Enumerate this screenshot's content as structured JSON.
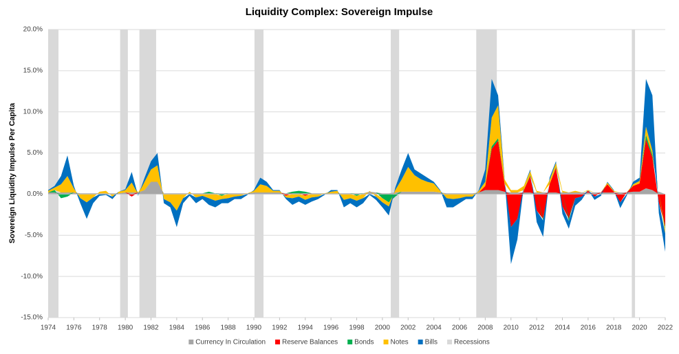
{
  "chart_data": {
    "type": "stacked_area",
    "title": "Liquidity Complex: Sovereign Impulse",
    "y_label": "Sovereign Liquidity Impulse Per Capita",
    "x": [
      1974,
      1974.5,
      1975,
      1975.5,
      1976,
      1976.5,
      1977,
      1977.5,
      1978,
      1978.5,
      1979,
      1979.5,
      1980,
      1980.5,
      1981,
      1981.5,
      1982,
      1982.5,
      1983,
      1983.5,
      1984,
      1984.5,
      1985,
      1985.5,
      1986,
      1986.5,
      1987,
      1987.5,
      1988,
      1988.5,
      1989,
      1989.5,
      1990,
      1990.5,
      1991,
      1991.5,
      1992,
      1992.5,
      1993,
      1993.5,
      1994,
      1994.5,
      1995,
      1995.5,
      1996,
      1996.5,
      1997,
      1997.5,
      1998,
      1998.5,
      1999,
      1999.5,
      2000,
      2000.5,
      2001,
      2001.5,
      2002,
      2002.5,
      2003,
      2003.5,
      2004,
      2004.5,
      2005,
      2005.5,
      2006,
      2006.5,
      2007,
      2007.5,
      2008,
      2008.5,
      2009,
      2009.5,
      2010,
      2010.5,
      2011,
      2011.5,
      2012,
      2012.5,
      2013,
      2013.5,
      2014,
      2014.5,
      2015,
      2015.5,
      2016,
      2016.5,
      2017,
      2017.5,
      2018,
      2018.5,
      2019,
      2019.5,
      2020,
      2020.5,
      2021,
      2021.5,
      2022
    ],
    "series": [
      {
        "name": "Currency In Circulation",
        "color": "#a6a6a6",
        "values": [
          0.2,
          0.2,
          0.2,
          0.2,
          0.2,
          0.1,
          0.1,
          0.1,
          0.1,
          0.1,
          0.1,
          0.1,
          0.2,
          0.2,
          0.2,
          0.5,
          1.5,
          1.5,
          0.1,
          0.1,
          0.1,
          0.1,
          0.1,
          0.1,
          0.1,
          0.1,
          0.1,
          0.1,
          0.1,
          0.1,
          0.1,
          0.1,
          0.2,
          0.2,
          0.2,
          0.2,
          0.2,
          0.1,
          0.1,
          0.1,
          0.1,
          0.1,
          0.1,
          0.1,
          0.1,
          0.1,
          0.1,
          0.1,
          0.1,
          0.1,
          0.3,
          0.2,
          0.1,
          0.1,
          0.2,
          0.3,
          0.3,
          0.3,
          0.3,
          0.3,
          0.3,
          0.2,
          0.1,
          0.1,
          0.1,
          0.1,
          0.1,
          0.2,
          0.5,
          0.5,
          0.5,
          0.3,
          0.2,
          0.2,
          0.2,
          0.2,
          0.2,
          0.2,
          0.2,
          0.2,
          0.2,
          0.2,
          0.2,
          0.2,
          0.2,
          0.2,
          0.2,
          0.2,
          0.2,
          0.2,
          0.2,
          0.3,
          0.3,
          0.7,
          0.5,
          0.3,
          0
        ]
      },
      {
        "name": "Reserve Balances",
        "color": "#ff0000",
        "values": [
          0,
          0,
          0,
          0,
          0,
          0,
          0,
          0,
          0,
          0,
          0,
          0,
          0,
          -0.3,
          0,
          0,
          0,
          0,
          0,
          0,
          0,
          0,
          0,
          0,
          0,
          0,
          0,
          0,
          0,
          0,
          0,
          0,
          0,
          0,
          0,
          0,
          0,
          -0.2,
          0,
          0,
          -0.2,
          0,
          0,
          0,
          0,
          0,
          0,
          0,
          0,
          0,
          0,
          0,
          0,
          0,
          0,
          0,
          0,
          0,
          0,
          0,
          0,
          0,
          0,
          0,
          0,
          0,
          0,
          0,
          0.5,
          5,
          6,
          1,
          -4,
          -3,
          0.3,
          2,
          -2,
          -3,
          1,
          3,
          -1.5,
          -3,
          -0.5,
          -0.3,
          0.2,
          -0.3,
          0,
          1,
          0.1,
          -1,
          0,
          0.7,
          1,
          6,
          4,
          -1,
          -4
        ]
      },
      {
        "name": "Bonds",
        "color": "#00b050",
        "values": [
          0,
          0.3,
          -0.5,
          -0.3,
          0,
          0,
          0,
          0,
          0,
          0,
          0,
          0,
          0,
          0,
          0,
          0,
          0,
          0,
          0,
          0,
          0,
          0,
          0,
          0,
          0,
          0.2,
          0,
          -0.2,
          0,
          0,
          0,
          0,
          0,
          0,
          0,
          0,
          0,
          0,
          0.2,
          0.3,
          0.2,
          0,
          0,
          0,
          0,
          0,
          0,
          0,
          -0.2,
          0,
          0,
          0,
          -0.5,
          -1,
          -0.3,
          0,
          0,
          0,
          0,
          0,
          0,
          0,
          0,
          0,
          0,
          0,
          0,
          0,
          0,
          0.3,
          0.3,
          0,
          0,
          0,
          0,
          0.1,
          0,
          -0.2,
          0,
          0.1,
          0,
          -0.3,
          0,
          0,
          0,
          0,
          0,
          0,
          0,
          0,
          0,
          0,
          0,
          0.5,
          0.3,
          0,
          -0.3
        ]
      },
      {
        "name": "Notes",
        "color": "#ffc000",
        "values": [
          0.2,
          0.3,
          1,
          2,
          0.5,
          -0.5,
          -1,
          -0.4,
          0.2,
          0.3,
          -0.3,
          0.2,
          0.3,
          1.2,
          0,
          1,
          1.5,
          2,
          -0.6,
          -1,
          -2,
          -0.5,
          0.2,
          -0.4,
          -0.2,
          -0.5,
          -0.8,
          -0.4,
          -0.5,
          -0.3,
          -0.2,
          0,
          0.2,
          1,
          0.8,
          0.2,
          0.2,
          -0.2,
          -0.5,
          -0.3,
          -0.5,
          -0.4,
          -0.3,
          0,
          0.2,
          0.3,
          -0.7,
          -0.5,
          -0.6,
          -0.5,
          0.1,
          -0.3,
          -0.5,
          -0.5,
          0.3,
          1.5,
          3,
          2,
          1.5,
          1.2,
          1,
          0.2,
          -0.5,
          -0.6,
          -0.5,
          -0.3,
          -0.3,
          0.2,
          0.5,
          3.5,
          4,
          0.5,
          0.3,
          0.3,
          0.5,
          0.5,
          0.2,
          0,
          0.5,
          0.5,
          0.2,
          0,
          0.2,
          0,
          0.1,
          0,
          0,
          0.2,
          0.1,
          0,
          0,
          0.2,
          0.3,
          1,
          0.5,
          0,
          -0.5
        ]
      },
      {
        "name": "Bills",
        "color": "#0070c0",
        "values": [
          0.1,
          0.2,
          1,
          2.5,
          0.3,
          -0.6,
          -2,
          -0.7,
          -0.2,
          -0.1,
          -0.3,
          0,
          0.1,
          1.3,
          -0.2,
          0.5,
          1,
          1.5,
          -0.5,
          -0.6,
          -2,
          -0.6,
          -0.2,
          -0.7,
          -0.4,
          -0.8,
          -0.8,
          -0.5,
          -0.6,
          -0.3,
          -0.4,
          -0.1,
          0.1,
          0.8,
          0.5,
          0.1,
          0.1,
          -0.2,
          -0.8,
          -0.6,
          -0.6,
          -0.5,
          -0.3,
          -0.1,
          0.2,
          0.1,
          -0.9,
          -0.6,
          -0.8,
          -0.6,
          -0.1,
          -0.4,
          -0.6,
          -1.1,
          0.3,
          1.2,
          1.7,
          0.7,
          0.7,
          0.5,
          0.2,
          0.1,
          -1.1,
          -1,
          -0.6,
          -0.3,
          -0.3,
          0.1,
          1.5,
          4.7,
          1.2,
          0.2,
          -4.5,
          -2.5,
          0,
          0.2,
          -1.4,
          -2,
          0.3,
          0.2,
          -0.9,
          -0.9,
          -0.9,
          -0.4,
          0,
          -0.4,
          -0.2,
          0.1,
          0.1,
          -0.7,
          -0.2,
          0.3,
          0.4,
          5.8,
          6.7,
          -1.3,
          -2.2
        ]
      }
    ],
    "recessions": {
      "name": "Recessions",
      "color": "#d9d9d9",
      "spans": [
        [
          1974,
          1974.8
        ],
        [
          1979.6,
          1980.2
        ],
        [
          1981.1,
          1982.4
        ],
        [
          1990.05,
          1990.75
        ],
        [
          2000.65,
          2001.3
        ],
        [
          2007.3,
          2008.9
        ],
        [
          2019.4,
          2019.65
        ]
      ]
    },
    "xlim": [
      1974,
      2022
    ],
    "xticks": [
      1974,
      1976,
      1978,
      1980,
      1982,
      1984,
      1986,
      1988,
      1990,
      1992,
      1994,
      1996,
      1998,
      2000,
      2002,
      2004,
      2006,
      2008,
      2010,
      2012,
      2014,
      2016,
      2018,
      2020,
      2022
    ],
    "ylim": [
      -15,
      20
    ],
    "yticks": [
      {
        "value": 20,
        "label": "20.0%"
      },
      {
        "value": 15,
        "label": "15.0%"
      },
      {
        "value": 10,
        "label": "10.0%"
      },
      {
        "value": 5,
        "label": "5.0%"
      },
      {
        "value": 0,
        "label": "0.0%"
      },
      {
        "value": -5,
        "label": "-5.0%"
      },
      {
        "value": -10,
        "label": "-10.0%"
      },
      {
        "value": -15,
        "label": "-15.0%"
      }
    ],
    "grid": true,
    "legend": "bottom"
  }
}
